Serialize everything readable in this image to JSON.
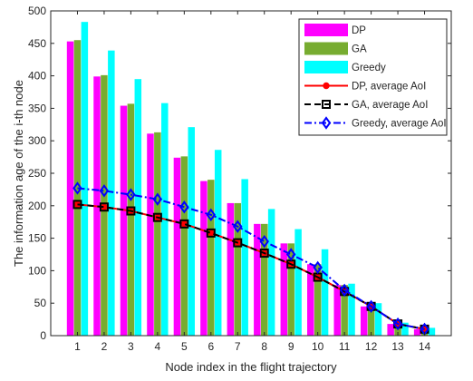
{
  "chart_data": {
    "type": "bar",
    "xlabel": "Node index in the flight trajectory",
    "ylabel": "The information age of the i-th node",
    "categories": [
      "1",
      "2",
      "3",
      "4",
      "5",
      "6",
      "7",
      "8",
      "9",
      "10",
      "11",
      "12",
      "13",
      "14"
    ],
    "ylim": [
      0,
      500
    ],
    "yticks": [
      0,
      50,
      100,
      150,
      200,
      250,
      300,
      350,
      400,
      450,
      500
    ],
    "grid": false,
    "legend_position": "top-right",
    "bar_series": [
      {
        "name": "DP",
        "color": "#ff00ff",
        "values": [
          453,
          399,
          354,
          311,
          274,
          238,
          204,
          172,
          142,
          110,
          78,
          45,
          18,
          10
        ]
      },
      {
        "name": "GA",
        "color": "#77ac30",
        "values": [
          455,
          401,
          357,
          313,
          276,
          240,
          204,
          172,
          142,
          110,
          78,
          45,
          18,
          10
        ]
      },
      {
        "name": "Greedy",
        "color": "#00ffff",
        "values": [
          483,
          439,
          395,
          358,
          321,
          286,
          241,
          195,
          164,
          133,
          80,
          50,
          20,
          12
        ]
      }
    ],
    "line_series": [
      {
        "name": "DP, average AoI",
        "color": "#ff0000",
        "marker": "dot",
        "dash": "solid",
        "values": [
          202,
          198,
          192,
          182,
          172,
          158,
          143,
          127,
          110,
          90,
          68,
          45,
          18,
          10
        ]
      },
      {
        "name": "GA, average AoI",
        "color": "#000000",
        "marker": "square",
        "dash": "dashed",
        "values": [
          202,
          198,
          192,
          182,
          172,
          158,
          143,
          127,
          110,
          90,
          68,
          45,
          18,
          10
        ]
      },
      {
        "name": "Greedy, average AoI",
        "color": "#0000ff",
        "marker": "diamond",
        "dash": "dashdot",
        "values": [
          227,
          223,
          217,
          210,
          198,
          186,
          168,
          145,
          125,
          105,
          70,
          45,
          18,
          10
        ]
      }
    ]
  }
}
